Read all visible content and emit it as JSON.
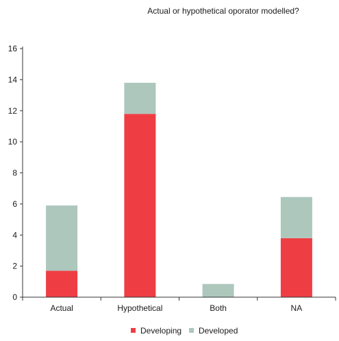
{
  "chart_data": {
    "type": "bar",
    "stacked": true,
    "title": "Actual or hypothetical oporator modelled?",
    "xlabel": "",
    "ylabel": "",
    "categories": [
      "Actual",
      "Hypothetical",
      "Both",
      "NA"
    ],
    "series": [
      {
        "name": "Developing",
        "color": "#ee3e44",
        "values": [
          1.7,
          11.8,
          0,
          3.8
        ]
      },
      {
        "name": "Developed",
        "color": "#adc7bd",
        "values": [
          4.2,
          2.0,
          0.85,
          2.65
        ]
      }
    ],
    "ylim": [
      0,
      16
    ],
    "yticks": [
      0,
      2,
      4,
      6,
      8,
      10,
      12,
      14,
      16
    ],
    "grid": false,
    "legend_position": "bottom-center"
  }
}
